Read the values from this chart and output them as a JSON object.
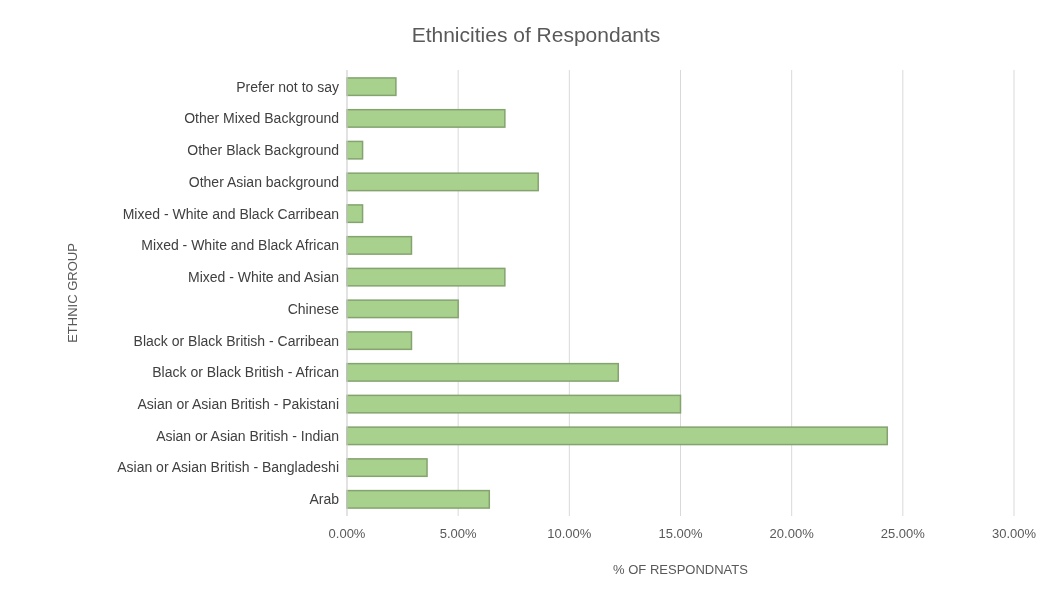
{
  "chart_data": {
    "type": "bar",
    "orientation": "horizontal",
    "title": "Ethnicities of Respondants",
    "xlabel": "% OF RESPONDNATS",
    "ylabel": "ETHNIC GROUP",
    "categories": [
      "Prefer not to say",
      "Other Mixed Background",
      "Other Black Background",
      "Other Asian background",
      "Mixed - White and Black Carribean",
      "Mixed - White and Black African",
      "Mixed - White and Asian",
      "Chinese",
      "Black or Black British - Carribean",
      "Black or Black British - African",
      "Asian or Asian British - Pakistani",
      "Asian or Asian British - Indian",
      "Asian or Asian British - Bangladeshi",
      "Arab"
    ],
    "values": [
      2.2,
      7.1,
      0.7,
      8.6,
      0.7,
      2.9,
      7.1,
      5.0,
      2.9,
      12.2,
      15.0,
      24.3,
      3.6,
      6.4
    ],
    "color": "#a9d18e",
    "xlim": [
      0,
      30
    ],
    "xticks": [
      {
        "value": 0,
        "label": "0.00%"
      },
      {
        "value": 5,
        "label": "5.00%"
      },
      {
        "value": 10,
        "label": "10.00%"
      },
      {
        "value": 15,
        "label": "15.00%"
      },
      {
        "value": 20,
        "label": "20.00%"
      },
      {
        "value": 25,
        "label": "25.00%"
      },
      {
        "value": 30,
        "label": "30.00%"
      }
    ],
    "grid": "x"
  }
}
